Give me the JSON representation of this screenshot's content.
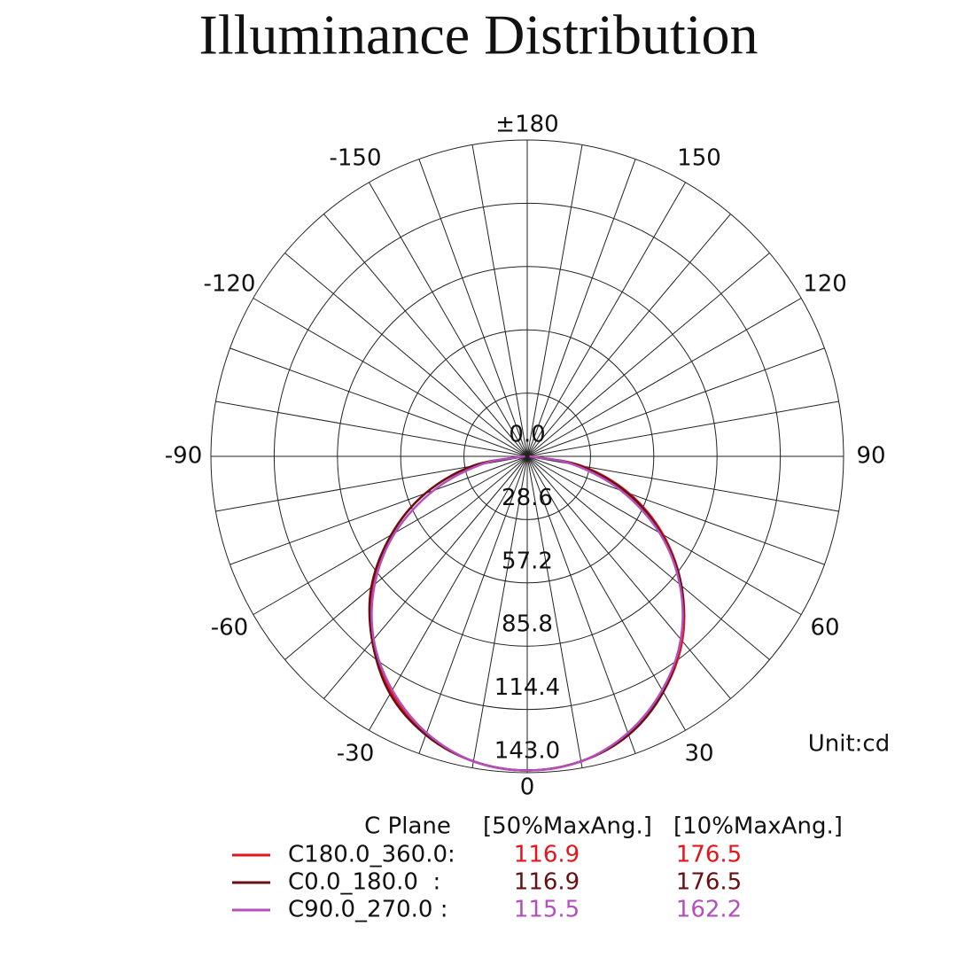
{
  "chart_data": {
    "type": "polar",
    "title": "Illuminance Distribution",
    "unit_label": "Unit:cd",
    "x": [
      -90,
      -80,
      -70,
      -60,
      -50,
      -40,
      -30,
      -20,
      -10,
      0,
      10,
      20,
      30,
      40,
      50,
      60,
      70,
      80,
      90
    ],
    "series": [
      {
        "name": "C180.0_360.0:",
        "color": "#e3151d",
        "values": [
          1,
          25,
          49,
          71,
          91,
          109,
          123,
          134,
          140,
          142,
          140,
          134,
          123,
          109,
          91,
          71,
          49,
          25,
          1
        ],
        "max_ang_50": 116.9,
        "max_ang_10": 176.5
      },
      {
        "name": "C0.0_180.0  :",
        "color": "#6a0e12",
        "values": [
          1,
          25,
          49,
          71,
          92,
          109,
          124,
          134,
          140,
          142,
          140,
          134,
          123,
          108,
          91,
          70,
          48,
          24,
          1
        ],
        "max_ang_50": 116.9,
        "max_ang_10": 176.5
      },
      {
        "name": "C90.0_270.0 :",
        "color": "#b350bb",
        "values": [
          1,
          21,
          45,
          69,
          90,
          108,
          122,
          133,
          140,
          142,
          140,
          133,
          122,
          108,
          90,
          69,
          45,
          21,
          1
        ],
        "max_ang_50": 115.5,
        "max_ang_10": 162.2
      }
    ],
    "legend_header": [
      "C Plane",
      "[50%MaxAng.]",
      "[10%MaxAng.]"
    ],
    "rlim": [
      0,
      143
    ],
    "rticks": [
      {
        "value": 0,
        "label": "0.0"
      },
      28.6,
      57.2,
      85.8,
      114.4,
      {
        "value": 143,
        "label": "143.0"
      }
    ],
    "thetaticks": [
      {
        "value": 180,
        "label": "±180"
      },
      150,
      120,
      90,
      60,
      30,
      0,
      -30,
      -60,
      -90,
      -120,
      -150
    ],
    "thetagrid": [
      -170,
      -160,
      -150,
      -140,
      -130,
      -120,
      -110,
      -100,
      -90,
      -80,
      -70,
      -60,
      -50,
      -40,
      -30,
      -20,
      -10,
      0,
      10,
      20,
      30,
      40,
      50,
      60,
      70,
      80,
      90,
      100,
      110,
      120,
      130,
      140,
      150,
      160,
      170,
      180
    ],
    "grid": true
  }
}
